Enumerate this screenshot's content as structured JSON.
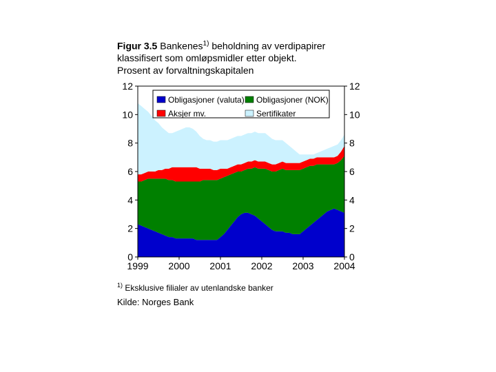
{
  "title_prefix": "Figur 3.5",
  "title_rest_line1": " Bankenes",
  "title_sup": "1)",
  "title_after_sup": " beholdning av verdipapirer",
  "title_line2": "klassifisert som omløpsmidler etter objekt.",
  "title_line3": "Prosent av forvaltningskapitalen",
  "footnote_sup": "1)",
  "footnote_text": " Eksklusive filialer av utenlandske banker",
  "source": "Kilde: Norges Bank",
  "chart": {
    "type": "stacked-area",
    "ylim": [
      0,
      12
    ],
    "ytick_step": 2,
    "xlabels": [
      "1999",
      "2000",
      "2001",
      "2002",
      "2003",
      "2004"
    ],
    "x_count": 61,
    "background_color": "#ffffff",
    "axis_color": "#000000",
    "tick_font_size": 14,
    "legend": {
      "border_color": "#000000",
      "bg": "#ffffff",
      "items": [
        {
          "label": "Obligasjoner (valuta)",
          "color": "#0000cc"
        },
        {
          "label": "Obligasjoner (NOK)",
          "color": "#008000"
        },
        {
          "label": "Aksjer mv.",
          "color": "#ff0000"
        },
        {
          "label": "Sertifikater",
          "color": "#ccf2ff"
        }
      ]
    },
    "series": [
      {
        "name": "Obligasjoner (valuta)",
        "color": "#0000cc",
        "values": [
          2.3,
          2.2,
          2.1,
          2.0,
          1.9,
          1.8,
          1.7,
          1.6,
          1.5,
          1.4,
          1.4,
          1.3,
          1.3,
          1.3,
          1.3,
          1.3,
          1.3,
          1.2,
          1.2,
          1.2,
          1.2,
          1.2,
          1.2,
          1.2,
          1.4,
          1.6,
          1.9,
          2.2,
          2.5,
          2.8,
          3.0,
          3.1,
          3.1,
          3.0,
          2.9,
          2.7,
          2.5,
          2.3,
          2.1,
          1.9,
          1.8,
          1.8,
          1.8,
          1.7,
          1.7,
          1.6,
          1.6,
          1.6,
          1.8,
          2.0,
          2.2,
          2.4,
          2.6,
          2.8,
          3.0,
          3.2,
          3.3,
          3.4,
          3.3,
          3.2,
          3.1
        ]
      },
      {
        "name": "Obligasjoner (NOK)",
        "color": "#008000",
        "values": [
          3.0,
          3.1,
          3.3,
          3.5,
          3.6,
          3.7,
          3.8,
          3.9,
          4.0,
          4.0,
          4.0,
          4.0,
          4.0,
          4.0,
          4.0,
          4.0,
          4.0,
          4.1,
          4.1,
          4.2,
          4.2,
          4.2,
          4.2,
          4.2,
          4.1,
          4.0,
          3.8,
          3.6,
          3.4,
          3.2,
          3.0,
          3.0,
          3.1,
          3.2,
          3.4,
          3.5,
          3.7,
          3.9,
          4.0,
          4.1,
          4.2,
          4.3,
          4.4,
          4.4,
          4.4,
          4.5,
          4.5,
          4.5,
          4.4,
          4.3,
          4.2,
          4.0,
          3.9,
          3.7,
          3.5,
          3.3,
          3.2,
          3.1,
          3.3,
          3.6,
          4.0
        ]
      },
      {
        "name": "Aksjer mv.",
        "color": "#ff0000",
        "values": [
          0.5,
          0.5,
          0.5,
          0.5,
          0.5,
          0.5,
          0.6,
          0.6,
          0.7,
          0.8,
          0.9,
          1.0,
          1.0,
          1.0,
          1.0,
          1.0,
          1.0,
          1.0,
          0.9,
          0.8,
          0.8,
          0.8,
          0.7,
          0.7,
          0.7,
          0.6,
          0.5,
          0.5,
          0.5,
          0.5,
          0.5,
          0.5,
          0.5,
          0.5,
          0.5,
          0.5,
          0.5,
          0.5,
          0.5,
          0.5,
          0.5,
          0.5,
          0.5,
          0.5,
          0.5,
          0.5,
          0.5,
          0.5,
          0.5,
          0.5,
          0.5,
          0.5,
          0.5,
          0.5,
          0.5,
          0.5,
          0.5,
          0.5,
          0.5,
          0.6,
          0.7
        ]
      },
      {
        "name": "Sertifikater",
        "color": "#ccf2ff",
        "values": [
          5.0,
          4.8,
          4.5,
          4.2,
          3.9,
          3.6,
          3.3,
          3.0,
          2.7,
          2.5,
          2.4,
          2.5,
          2.6,
          2.7,
          2.8,
          2.8,
          2.7,
          2.5,
          2.3,
          2.1,
          2.0,
          2.0,
          2.0,
          2.0,
          2.0,
          2.0,
          2.0,
          2.0,
          2.0,
          2.0,
          2.0,
          2.0,
          2.0,
          2.0,
          2.0,
          2.0,
          2.0,
          2.0,
          1.9,
          1.8,
          1.7,
          1.6,
          1.5,
          1.4,
          1.2,
          1.0,
          0.8,
          0.6,
          0.5,
          0.4,
          0.3,
          0.3,
          0.3,
          0.4,
          0.5,
          0.6,
          0.7,
          0.8,
          0.8,
          0.8,
          0.8
        ]
      }
    ]
  }
}
